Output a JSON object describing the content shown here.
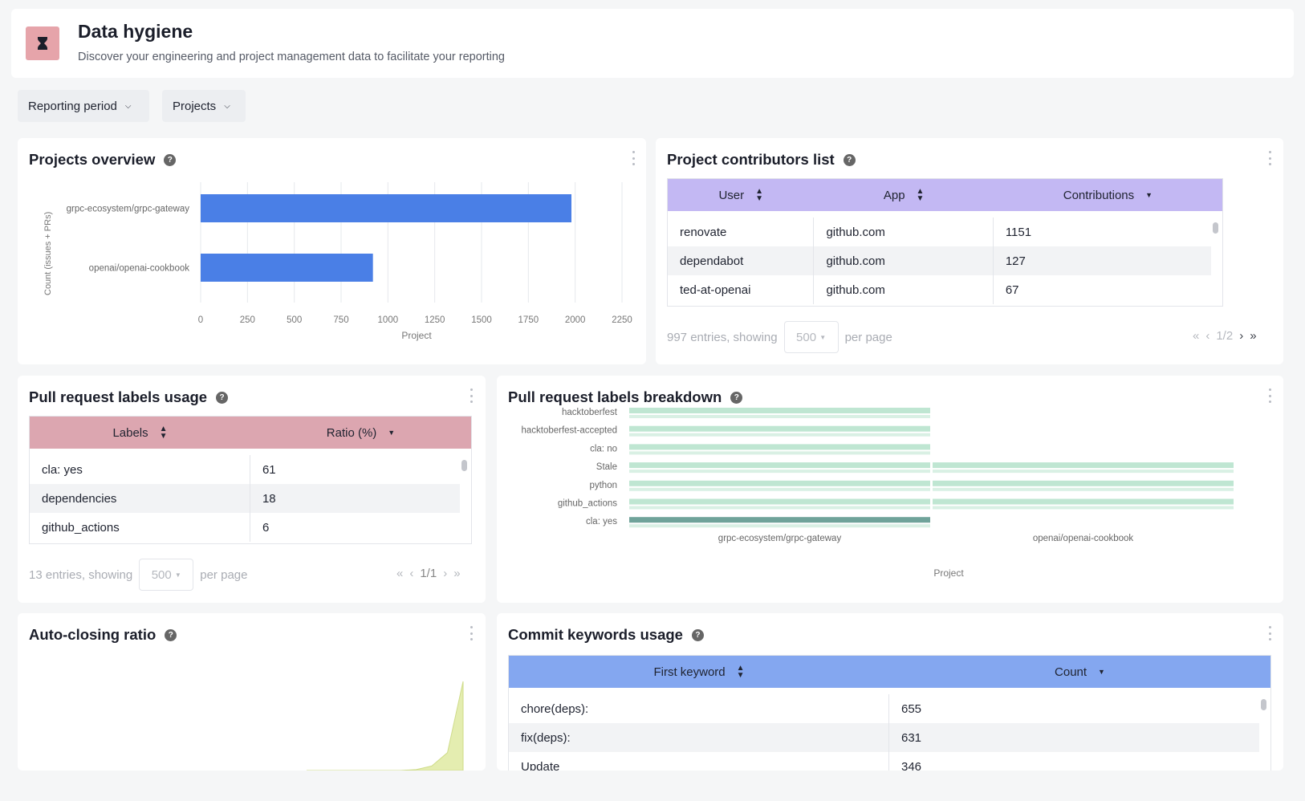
{
  "header": {
    "title": "Data hygiene",
    "subtitle": "Discover your engineering and project management data to facilitate your reporting",
    "logo_icon": "hourglass-icon"
  },
  "filters": [
    {
      "label": "Reporting period"
    },
    {
      "label": "Projects"
    }
  ],
  "projects_overview": {
    "title": "Projects overview",
    "chart_data": {
      "type": "bar",
      "orientation": "horizontal",
      "categories": [
        "grpc-ecosystem/grpc-gateway",
        "openai/openai-cookbook"
      ],
      "values": [
        1980,
        920
      ],
      "xlim": [
        0,
        2250
      ],
      "xticks": [
        0,
        250,
        500,
        750,
        1000,
        1250,
        1500,
        1750,
        2000,
        2250
      ],
      "xlabel": "Project",
      "ylabel": "Count (issues + PRs)",
      "color": "#4a7fe6"
    }
  },
  "contributors": {
    "title": "Project contributors list",
    "columns": [
      "User",
      "App",
      "Contributions"
    ],
    "rows": [
      [
        "renovate",
        "github.com",
        "1151"
      ],
      [
        "dependabot",
        "github.com",
        "127"
      ],
      [
        "ted-at-openai",
        "github.com",
        "67"
      ]
    ],
    "entries_text": "997 entries, showing",
    "per_page_value": "500",
    "per_page_label": "per page",
    "page": "1/2",
    "header_color": "#c3b8f3"
  },
  "pr_labels_usage": {
    "title": "Pull request labels usage",
    "columns": [
      "Labels",
      "Ratio (%)"
    ],
    "rows": [
      [
        "cla: yes",
        "61"
      ],
      [
        "dependencies",
        "18"
      ],
      [
        "github_actions",
        "6"
      ]
    ],
    "entries_text": "13 entries, showing",
    "per_page_value": "500",
    "per_page_label": "per page",
    "page": "1/1",
    "header_color": "#dca6b0"
  },
  "pr_labels_breakdown": {
    "title": "Pull request labels breakdown",
    "chart_data": {
      "type": "bar",
      "orientation": "horizontal-stacked-grouped",
      "labels": [
        "hacktoberfest",
        "hacktoberfest-accepted",
        "cla: no",
        "Stale",
        "python",
        "github_actions",
        "cla: yes"
      ],
      "groups": [
        "grpc-ecosystem/grpc-gateway",
        "openai/openai-cookbook"
      ],
      "presence": {
        "grpc-ecosystem/grpc-gateway": [
          1,
          1,
          1,
          1,
          1,
          1,
          1
        ],
        "openai/openai-cookbook": [
          0,
          0,
          0,
          1,
          1,
          1,
          0
        ]
      },
      "xlabel": "Project",
      "color": "#bfe6d2",
      "highlight_color": "#6fa39a"
    }
  },
  "auto_closing": {
    "title": "Auto-closing ratio",
    "chart_data": {
      "type": "area",
      "x": [
        0,
        1,
        2,
        3,
        4,
        5,
        6,
        7,
        8,
        9,
        10
      ],
      "values": [
        0,
        0,
        0,
        0,
        0,
        0,
        0,
        1,
        5,
        20,
        100
      ],
      "color": "#e4edb0"
    }
  },
  "commit_keywords": {
    "title": "Commit keywords usage",
    "columns": [
      "First keyword",
      "Count"
    ],
    "rows": [
      [
        "chore(deps):",
        "655"
      ],
      [
        "fix(deps):",
        "631"
      ],
      [
        "Update",
        "346"
      ]
    ],
    "header_color": "#84a7f0"
  }
}
